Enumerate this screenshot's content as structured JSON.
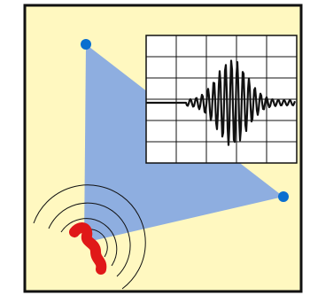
{
  "diagram": {
    "stations": [
      "station-top",
      "station-right",
      "epicenter"
    ],
    "seismogram": {
      "grid_columns": 5,
      "grid_rows": 6,
      "trace": "wave-burst"
    },
    "colors": {
      "background": "#fff8c0",
      "frame": "#111111",
      "triangle": "#8eaee0",
      "station_dot": "#0a6fd0",
      "epicenter": "#e01818",
      "waves": "#111111",
      "trace": "#111111",
      "grid": "#111111",
      "panel": "#ffffff"
    }
  }
}
